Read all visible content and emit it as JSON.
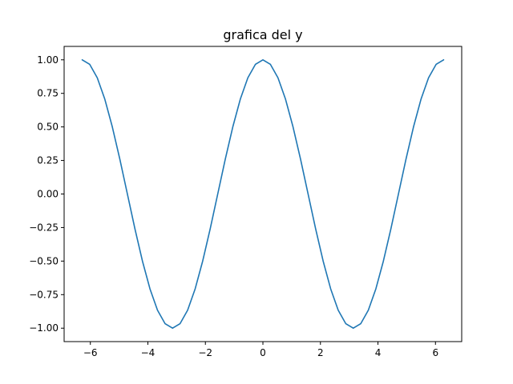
{
  "chart_data": {
    "type": "line",
    "title": "grafica del y",
    "xlabel": "",
    "ylabel": "",
    "xlim": [
      -6.912,
      6.912
    ],
    "ylim": [
      -1.1,
      1.1
    ],
    "grid": false,
    "legend": "none",
    "xticks": [
      -6,
      -4,
      -2,
      0,
      2,
      4,
      6
    ],
    "xtick_labels": [
      "−6",
      "−4",
      "−2",
      "0",
      "2",
      "4",
      "6"
    ],
    "yticks": [
      1.0,
      0.75,
      0.5,
      0.25,
      0.0,
      -0.25,
      -0.5,
      -0.75,
      -1.0
    ],
    "ytick_labels": [
      "1.00",
      "0.75",
      "0.50",
      "0.25",
      "0.00",
      "−0.25",
      "−0.50",
      "−0.75",
      "−1.00"
    ],
    "series": [
      {
        "color": "#1f77b4",
        "x": [
          -6.2832,
          -6.0214,
          -5.7596,
          -5.4978,
          -5.236,
          -4.9742,
          -4.7124,
          -4.4506,
          -4.1888,
          -3.927,
          -3.6652,
          -3.4034,
          -3.1416,
          -2.8798,
          -2.618,
          -2.3562,
          -2.0944,
          -1.8326,
          -1.5708,
          -1.309,
          -1.0472,
          -0.7854,
          -0.5236,
          -0.2618,
          0.0,
          0.2618,
          0.5236,
          0.7854,
          1.0472,
          1.309,
          1.5708,
          1.8326,
          2.0944,
          2.3562,
          2.618,
          2.8798,
          3.1416,
          3.4034,
          3.6652,
          3.927,
          4.1888,
          4.4506,
          4.7124,
          4.9742,
          5.236,
          5.4978,
          5.7596,
          6.0214,
          6.2832
        ],
        "y": [
          1.0,
          0.9659,
          0.866,
          0.7071,
          0.5,
          0.2588,
          0.0,
          -0.2588,
          -0.5,
          -0.7071,
          -0.866,
          -0.9659,
          -1.0,
          -0.9659,
          -0.866,
          -0.7071,
          -0.5,
          -0.2588,
          0.0,
          0.2588,
          0.5,
          0.7071,
          0.866,
          0.9659,
          1.0,
          0.9659,
          0.866,
          0.7071,
          0.5,
          0.2588,
          0.0,
          -0.2588,
          -0.5,
          -0.7071,
          -0.866,
          -0.9659,
          -1.0,
          -0.9659,
          -0.866,
          -0.7071,
          -0.5,
          -0.2588,
          0.0,
          0.2588,
          0.5,
          0.7071,
          0.866,
          0.9659,
          1.0
        ]
      }
    ]
  }
}
